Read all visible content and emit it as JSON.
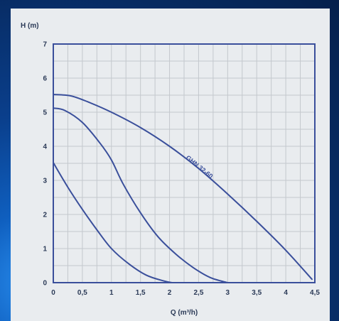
{
  "chart_data": {
    "type": "line",
    "xlabel": "Q (m³/h)",
    "ylabel": "H (m)",
    "xlim": [
      0,
      4.5
    ],
    "ylim": [
      0,
      7
    ],
    "x_ticks": [
      "0",
      "0,5",
      "1",
      "1,5",
      "2",
      "2,5",
      "3",
      "3,5",
      "4",
      "4,5"
    ],
    "y_ticks": [
      "0",
      "1",
      "2",
      "3",
      "4",
      "5",
      "6",
      "7"
    ],
    "grid": true,
    "legend": "none",
    "annotation": "GHN 32-60",
    "line_color": "#3a4f9b",
    "series": [
      {
        "points": [
          [
            0,
            5.52
          ],
          [
            0.3,
            5.48
          ],
          [
            0.6,
            5.3
          ],
          [
            1.0,
            5.0
          ],
          [
            1.5,
            4.55
          ],
          [
            2.0,
            4.0
          ],
          [
            2.5,
            3.35
          ],
          [
            3.0,
            2.6
          ],
          [
            3.5,
            1.8
          ],
          [
            4.0,
            0.95
          ],
          [
            4.45,
            0.1
          ]
        ]
      },
      {
        "points": [
          [
            0,
            5.12
          ],
          [
            0.2,
            5.05
          ],
          [
            0.5,
            4.7
          ],
          [
            0.8,
            4.1
          ],
          [
            1.0,
            3.6
          ],
          [
            1.2,
            2.9
          ],
          [
            1.5,
            2.05
          ],
          [
            1.8,
            1.35
          ],
          [
            2.1,
            0.85
          ],
          [
            2.4,
            0.45
          ],
          [
            2.7,
            0.15
          ],
          [
            3.0,
            0
          ]
        ]
      },
      {
        "points": [
          [
            0,
            3.52
          ],
          [
            0.25,
            2.8
          ],
          [
            0.5,
            2.15
          ],
          [
            0.75,
            1.55
          ],
          [
            1.0,
            1.0
          ],
          [
            1.3,
            0.55
          ],
          [
            1.6,
            0.22
          ],
          [
            1.9,
            0.05
          ],
          [
            2.05,
            0
          ]
        ]
      }
    ]
  }
}
